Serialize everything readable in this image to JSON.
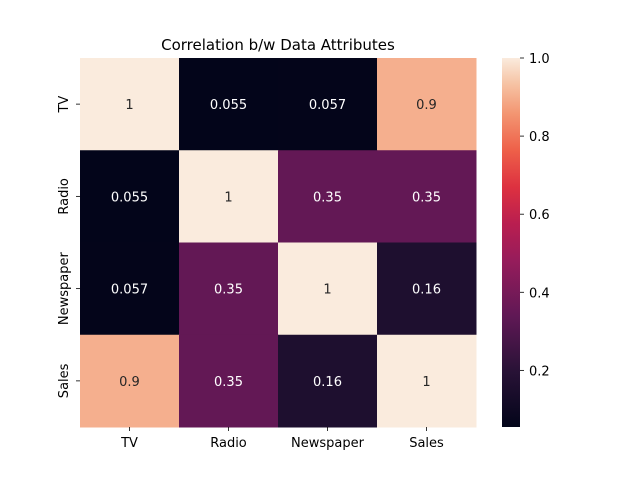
{
  "chart_data": {
    "type": "heatmap",
    "title": "Correlation b/w Data Attributes",
    "rows": [
      "TV",
      "Radio",
      "Newspaper",
      "Sales"
    ],
    "cols": [
      "TV",
      "Radio",
      "Newspaper",
      "Sales"
    ],
    "values": [
      [
        1,
        0.055,
        0.057,
        0.9
      ],
      [
        0.055,
        1,
        0.35,
        0.35
      ],
      [
        0.057,
        0.35,
        1,
        0.16
      ],
      [
        0.9,
        0.35,
        0.16,
        1
      ]
    ],
    "value_labels": [
      [
        "1",
        "0.055",
        "0.057",
        "0.9"
      ],
      [
        "0.055",
        "1",
        "0.35",
        "0.35"
      ],
      [
        "0.057",
        "0.35",
        "1",
        "0.16"
      ],
      [
        "0.9",
        "0.35",
        "0.16",
        "1"
      ]
    ],
    "colormap": "rocket",
    "vmin": 0.055,
    "vmax": 1.0,
    "colorbar_ticks": [
      "0.2",
      "0.4",
      "0.6",
      "0.8",
      "1.0"
    ],
    "legend": "colorbar-right"
  }
}
